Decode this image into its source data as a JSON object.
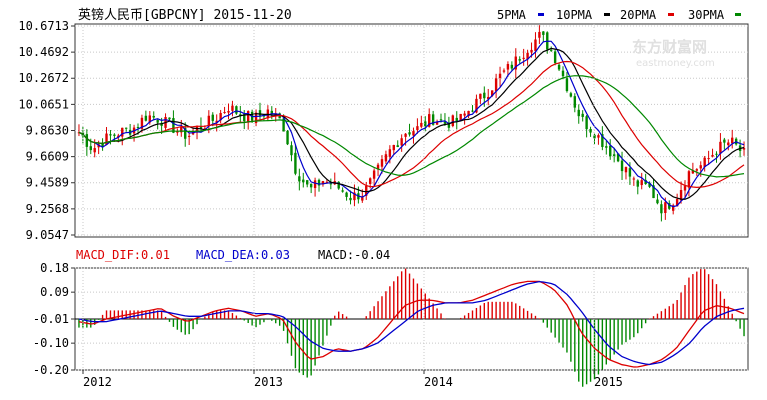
{
  "chart_data": [
    {
      "type": "candlestick",
      "title": "英镑人民币[GBPCNY] 2015-11-20",
      "legend": [
        {
          "label": "5PMA",
          "color": "#0000cc"
        },
        {
          "label": "10PMA",
          "color": "#000000"
        },
        {
          "label": "20PMA",
          "color": "#dd0000"
        },
        {
          "label": "30PMA",
          "color": "#008800"
        }
      ],
      "y_tick_labels": [
        "10.6713",
        "10.4692",
        "10.2672",
        "10.0651",
        "9.8630",
        "9.6609",
        "9.4589",
        "9.2568",
        "9.0547"
      ],
      "ylim": [
        9.0547,
        10.6713
      ],
      "x_tick_labels": [
        "2012",
        "2013",
        "2014",
        "2015"
      ],
      "x_range": [
        "2011-10",
        "2015-11"
      ],
      "up_color": "#dd0000",
      "down_color": "#008800",
      "watermark": "东方财富网 eastmoney.com",
      "price_trend": {
        "dates": [
          "2011-10",
          "2011-11",
          "2011-12",
          "2012-01",
          "2012-02",
          "2012-03",
          "2012-04",
          "2012-05",
          "2012-06",
          "2012-07",
          "2012-08",
          "2012-09",
          "2012-10",
          "2012-11",
          "2012-12",
          "2013-01",
          "2013-02",
          "2013-03",
          "2013-04",
          "2013-05",
          "2013-06",
          "2013-07",
          "2013-08",
          "2013-09",
          "2013-10",
          "2013-11",
          "2013-12",
          "2014-01",
          "2014-02",
          "2014-03",
          "2014-04",
          "2014-05",
          "2014-06",
          "2014-07",
          "2014-08",
          "2014-09",
          "2014-10",
          "2014-11",
          "2014-12",
          "2015-01",
          "2015-02",
          "2015-03",
          "2015-04",
          "2015-05",
          "2015-06",
          "2015-07",
          "2015-08",
          "2015-09",
          "2015-10",
          "2015-11"
        ],
        "close": [
          9.85,
          9.72,
          9.8,
          9.85,
          9.88,
          9.98,
          9.95,
          9.88,
          9.82,
          9.9,
          9.95,
          10.05,
          9.98,
          9.96,
          10.02,
          9.92,
          9.55,
          9.4,
          9.48,
          9.43,
          9.35,
          9.38,
          9.55,
          9.72,
          9.85,
          9.88,
          9.96,
          9.92,
          9.94,
          10.05,
          10.15,
          10.28,
          10.38,
          10.5,
          10.6,
          10.45,
          10.2,
          9.95,
          9.85,
          9.72,
          9.6,
          9.45,
          9.42,
          9.25,
          9.35,
          9.55,
          9.6,
          9.72,
          9.78,
          9.68
        ]
      }
    },
    {
      "type": "macd",
      "indicator_labels": {
        "dif": "MACD_DIF:0.01",
        "dea": "MACD_DEA:0.03",
        "macd": "MACD:-0.04"
      },
      "colors": {
        "dif": "#dd0000",
        "dea": "#0000cc",
        "macd_up": "#dd0000",
        "macd_down": "#008800"
      },
      "y_tick_labels": [
        "0.18",
        "0.09",
        "-0.01",
        "-0.10",
        "-0.20"
      ],
      "ylim": [
        -0.2,
        0.18
      ],
      "dif": [
        -0.02,
        -0.03,
        -0.01,
        0.0,
        0.01,
        0.02,
        0.03,
        0.0,
        -0.02,
        0.0,
        0.02,
        0.03,
        0.02,
        0.0,
        0.01,
        -0.01,
        -0.1,
        -0.16,
        -0.15,
        -0.12,
        -0.13,
        -0.12,
        -0.08,
        -0.02,
        0.04,
        0.06,
        0.06,
        0.05,
        0.05,
        0.06,
        0.08,
        0.1,
        0.12,
        0.13,
        0.13,
        0.1,
        0.04,
        -0.06,
        -0.12,
        -0.16,
        -0.18,
        -0.19,
        -0.18,
        -0.16,
        -0.12,
        -0.05,
        0.02,
        0.04,
        0.03,
        0.01
      ],
      "dea": [
        -0.01,
        -0.02,
        -0.02,
        -0.01,
        0.0,
        0.01,
        0.02,
        0.01,
        0.0,
        0.0,
        0.01,
        0.02,
        0.02,
        0.01,
        0.01,
        0.0,
        -0.04,
        -0.09,
        -0.12,
        -0.13,
        -0.13,
        -0.12,
        -0.1,
        -0.06,
        -0.02,
        0.02,
        0.04,
        0.05,
        0.05,
        0.05,
        0.06,
        0.08,
        0.1,
        0.12,
        0.13,
        0.12,
        0.08,
        0.02,
        -0.05,
        -0.11,
        -0.15,
        -0.17,
        -0.18,
        -0.17,
        -0.14,
        -0.1,
        -0.04,
        0.0,
        0.02,
        0.03
      ]
    }
  ]
}
